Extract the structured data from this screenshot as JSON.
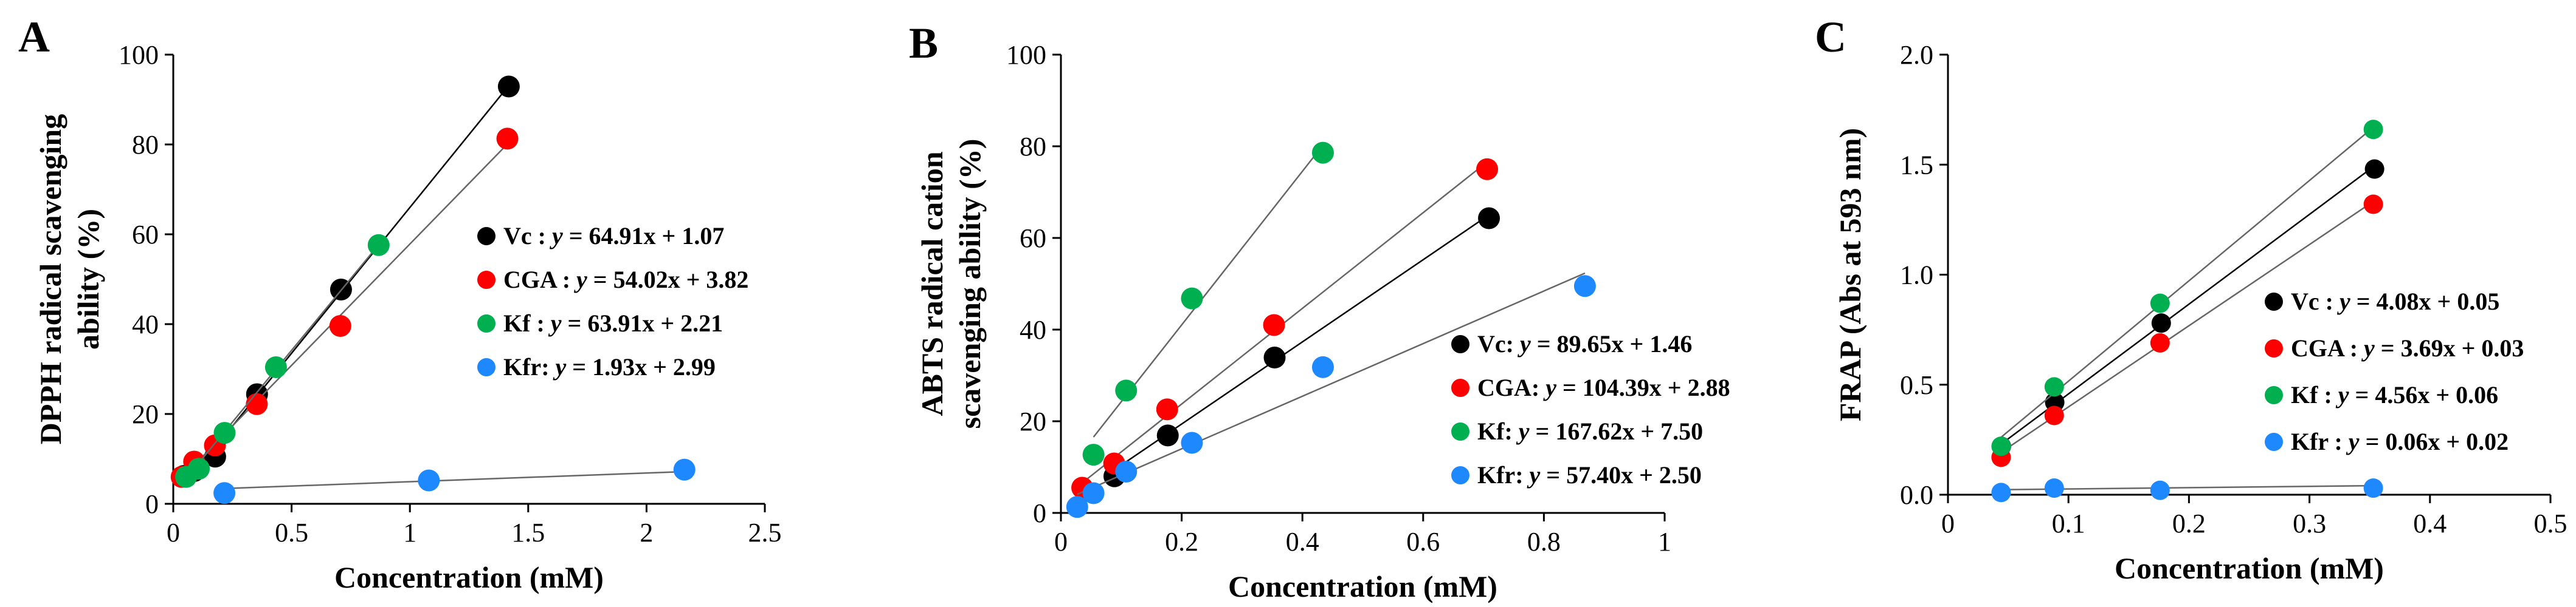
{
  "chart_data": [
    {
      "type": "scatter",
      "panel": "A",
      "xlabel": "Concentration (mM)",
      "ylabel": [
        "DPPH radical scavenging",
        "ability (%)"
      ],
      "xlim": [
        0,
        2.5
      ],
      "ylim": [
        0,
        100
      ],
      "xticks": [
        "0",
        "0.5",
        "1",
        "1.5",
        "2",
        "2.5"
      ],
      "yticks": [
        "0",
        "20",
        "40",
        "60",
        "80",
        "100"
      ],
      "legend_position": "center-right",
      "series": [
        {
          "name": "Vc",
          "color": "#000000",
          "equation": " : y = 64.91x + 1.07",
          "x": [
            0.0443,
            0.0886,
            0.177,
            0.354,
            0.709,
            1.418
          ],
          "y": [
            6.2,
            7.3,
            10.5,
            24.4,
            47.7,
            92.9
          ],
          "fit": [
            64.91,
            1.07
          ]
        },
        {
          "name": "CGA",
          "color": "#ff0000",
          "equation": " : y = 54.02x + 3.82",
          "x": [
            0.0353,
            0.0882,
            0.176,
            0.353,
            0.706,
            1.412
          ],
          "y": [
            6.0,
            9.4,
            13.0,
            22.2,
            39.6,
            81.3
          ],
          "fit": [
            54.02,
            3.82
          ]
        },
        {
          "name": "Kf",
          "color": "#00b050",
          "equation": " : y = 63.91x + 2.21",
          "x": [
            0.054,
            0.108,
            0.217,
            0.434,
            0.868
          ],
          "y": [
            6.0,
            7.8,
            15.8,
            30.4,
            57.6
          ],
          "fit": [
            63.91,
            2.21
          ]
        },
        {
          "name": "Kfr",
          "color": "#1e88ff",
          "equation": ": y = 1.93x + 2.99",
          "x": [
            0.216,
            1.08,
            2.16
          ],
          "y": [
            2.4,
            5.2,
            7.6
          ],
          "fit": [
            1.93,
            2.99
          ]
        }
      ]
    },
    {
      "type": "scatter",
      "panel": "B",
      "xlabel": "Concentration (mM)",
      "ylabel": [
        "ABTS radical cation",
        "scavenging ability (%)"
      ],
      "xlim": [
        0,
        1
      ],
      "ylim": [
        0,
        100
      ],
      "xticks": [
        "0",
        "0.2",
        "0.4",
        "0.6",
        "0.8",
        "1"
      ],
      "yticks": [
        "0",
        "20",
        "40",
        "60",
        "80",
        "100"
      ],
      "legend_position": "bottom-right",
      "series": [
        {
          "name": "Vc",
          "color": "#000000",
          "equation": ": y = 89.65x + 1.46",
          "x": [
            0.0886,
            0.177,
            0.354,
            0.709
          ],
          "y": [
            8.0,
            16.9,
            33.9,
            64.3
          ],
          "fit": [
            89.65,
            1.46
          ]
        },
        {
          "name": "CGA",
          "color": "#ff0000",
          "equation": ": y = 104.39x + 2.88",
          "x": [
            0.0353,
            0.0882,
            0.176,
            0.353,
            0.706
          ],
          "y": [
            5.5,
            10.8,
            22.6,
            41.0,
            75.0
          ],
          "fit": [
            104.39,
            2.88
          ]
        },
        {
          "name": "Kf",
          "color": "#00b050",
          "equation": ": y = 167.62x + 7.50",
          "x": [
            0.054,
            0.108,
            0.217,
            0.434
          ],
          "y": [
            12.7,
            26.7,
            46.8,
            78.6
          ],
          "fit": [
            167.62,
            7.5
          ]
        },
        {
          "name": "Kfr",
          "color": "#1e88ff",
          "equation": ": y = 57.40x + 2.50",
          "x": [
            0.027,
            0.054,
            0.108,
            0.217,
            0.434,
            0.868
          ],
          "y": [
            1.3,
            4.3,
            9.0,
            15.3,
            31.8,
            49.5
          ],
          "fit": [
            57.4,
            2.5
          ]
        }
      ]
    },
    {
      "type": "scatter",
      "panel": "C",
      "xlabel": "Concentration (mM)",
      "ylabel": [
        "FRAP (Abs at 593 nm)"
      ],
      "xlim": [
        0,
        0.5
      ],
      "ylim": [
        0,
        2.0
      ],
      "xticks": [
        "0",
        "0.1",
        "0.2",
        "0.3",
        "0.4",
        "0.5"
      ],
      "yticks": [
        "0.0",
        "0.5",
        "1.0",
        "1.5",
        "2.0"
      ],
      "legend_position": "center-right",
      "series": [
        {
          "name": "Vc",
          "color": "#000000",
          "equation": " : y = 4.08x + 0.05",
          "x": [
            0.0443,
            0.0886,
            0.177,
            0.354
          ],
          "y": [
            0.22,
            0.42,
            0.78,
            1.48
          ],
          "fit": [
            4.08,
            0.05
          ]
        },
        {
          "name": "CGA",
          "color": "#ff0000",
          "equation": " : y = 3.69x + 0.03",
          "x": [
            0.0441,
            0.0882,
            0.176,
            0.353
          ],
          "y": [
            0.17,
            0.36,
            0.69,
            1.32
          ],
          "fit": [
            3.69,
            0.03
          ]
        },
        {
          "name": "Kf",
          "color": "#00b050",
          "equation": " : y = 4.56x + 0.06",
          "x": [
            0.0441,
            0.0882,
            0.176,
            0.353
          ],
          "y": [
            0.22,
            0.49,
            0.87,
            1.66
          ],
          "fit": [
            4.56,
            0.06
          ]
        },
        {
          "name": "Kfr",
          "color": "#1e88ff",
          "equation": " : y = 0.06x + 0.02",
          "x": [
            0.0441,
            0.0882,
            0.176,
            0.353
          ],
          "y": [
            0.01,
            0.03,
            0.02,
            0.03
          ],
          "fit": [
            0.06,
            0.02
          ]
        }
      ]
    }
  ]
}
